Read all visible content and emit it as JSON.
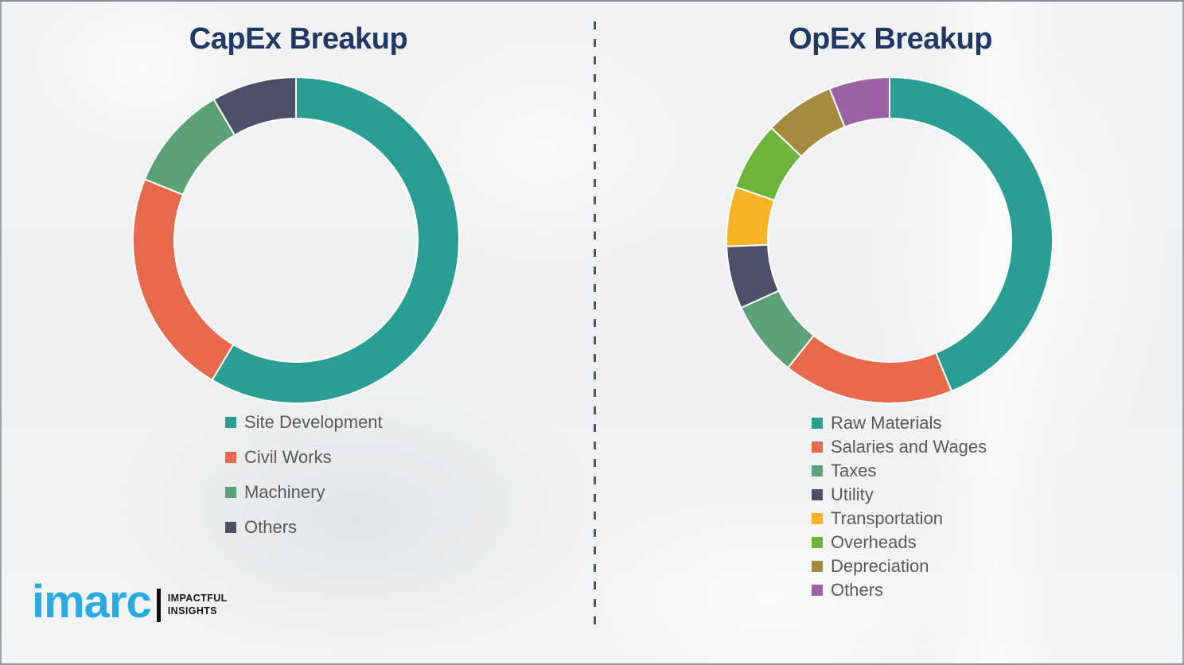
{
  "page": {
    "background_color": "#EFF1F2",
    "divider_color": "#55585E",
    "title_color": "#1F3864",
    "legend_text_color": "#595959"
  },
  "chart_data": [
    {
      "type": "pie",
      "variant": "donut",
      "title": "CapEx Breakup",
      "legend_position": "below-chart-left",
      "start_angle_deg": 0,
      "direction": "clockwise",
      "labels": [
        "Site Development",
        "Civil Works",
        "Machinery",
        "Others"
      ],
      "values_pct": [
        58.6,
        22.5,
        10.5,
        8.4
      ],
      "segments": [
        {
          "label": "Site Development",
          "value": 58.6,
          "color": "#2B9E94"
        },
        {
          "label": "Civil Works",
          "value": 22.5,
          "color": "#E5694A"
        },
        {
          "label": "Machinery",
          "value": 10.5,
          "color": "#5DA178"
        },
        {
          "label": "Others",
          "value": 8.4,
          "color": "#4C5068"
        }
      ]
    },
    {
      "type": "pie",
      "variant": "donut",
      "title": "OpEx Breakup",
      "legend_position": "below-chart-left",
      "start_angle_deg": 0,
      "direction": "clockwise",
      "labels": [
        "Raw Materials",
        "Salaries and Wages",
        "Taxes",
        "Utility",
        "Transportation",
        "Overheads",
        "Depreciation",
        "Others"
      ],
      "values_pct": [
        43.8,
        16.9,
        7.5,
        6.2,
        5.9,
        6.8,
        6.9,
        6.0
      ],
      "segments": [
        {
          "label": "Raw Materials",
          "value": 43.8,
          "color": "#2B9E94"
        },
        {
          "label": "Salaries and Wages",
          "value": 16.9,
          "color": "#E5694A"
        },
        {
          "label": "Taxes",
          "value": 7.5,
          "color": "#5DA178"
        },
        {
          "label": "Utility",
          "value": 6.2,
          "color": "#4C5068"
        },
        {
          "label": "Transportation",
          "value": 5.9,
          "color": "#F6B324"
        },
        {
          "label": "Overheads",
          "value": 6.8,
          "color": "#6DB33C"
        },
        {
          "label": "Depreciation",
          "value": 6.9,
          "color": "#A68B3E"
        },
        {
          "label": "Others",
          "value": 6.0,
          "color": "#9B62A4"
        }
      ]
    }
  ],
  "logo": {
    "brand": "imarc",
    "brand_color": "#29ABE2",
    "tagline_line1": "IMPACTFUL",
    "tagline_line2": "INSIGHTS"
  }
}
